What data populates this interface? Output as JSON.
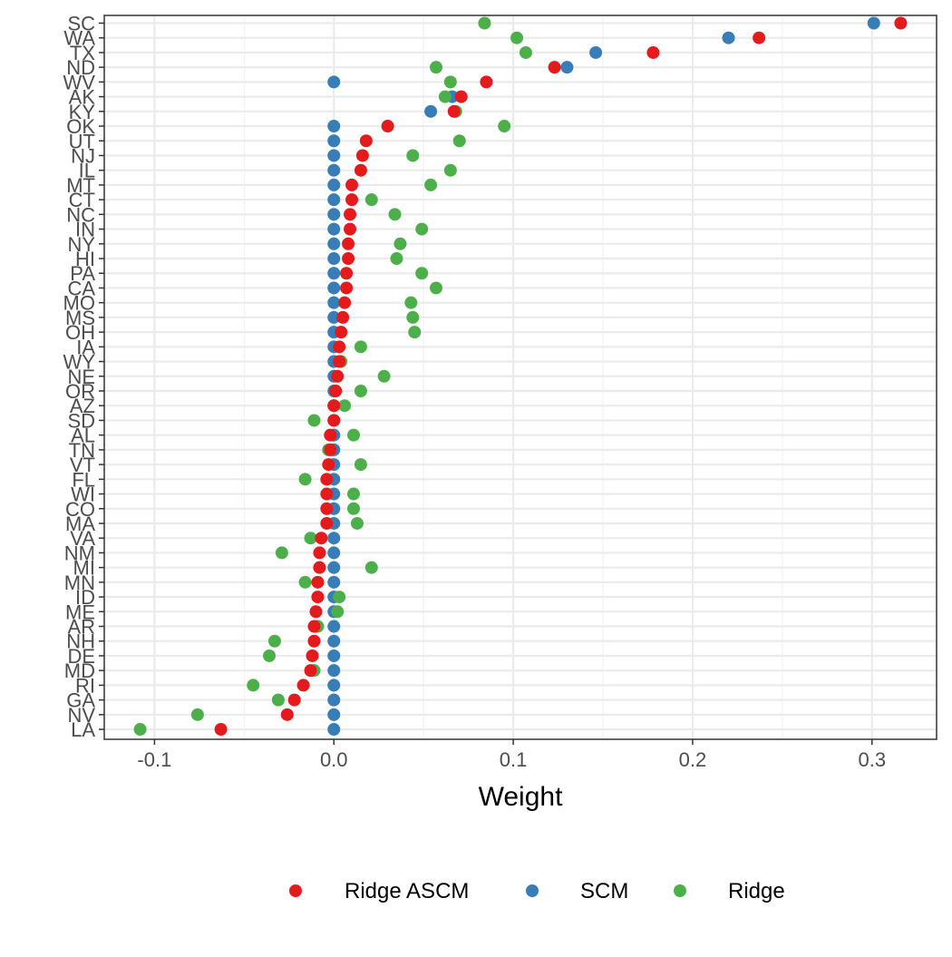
{
  "chart_data": {
    "type": "scatter",
    "title": "",
    "xlabel": "Weight",
    "ylabel": "",
    "xlim": [
      -0.128,
      0.336
    ],
    "x_ticks": [
      -0.1,
      0.0,
      0.1,
      0.2,
      0.3
    ],
    "x_tick_labels": [
      "-0.1",
      "0.0",
      "0.1",
      "0.2",
      "0.3"
    ],
    "grid": true,
    "legend_position": "bottom",
    "categories": [
      "SC",
      "WA",
      "TX",
      "ND",
      "WV",
      "AK",
      "KY",
      "OK",
      "UT",
      "NJ",
      "IL",
      "MT",
      "CT",
      "NC",
      "IN",
      "NY",
      "HI",
      "PA",
      "CA",
      "MO",
      "MS",
      "OH",
      "IA",
      "WY",
      "NE",
      "OR",
      "AZ",
      "SD",
      "AL",
      "TN",
      "VT",
      "FL",
      "WI",
      "CO",
      "MA",
      "VA",
      "NM",
      "MI",
      "MN",
      "ID",
      "ME",
      "AR",
      "NH",
      "DE",
      "MD",
      "RI",
      "GA",
      "NV",
      "LA"
    ],
    "series": [
      {
        "name": "SCM",
        "color": "#377EB8",
        "values": [
          0.301,
          0.22,
          0.146,
          0.13,
          0,
          0.066,
          0.054,
          0,
          0,
          0,
          0,
          0,
          0,
          0,
          0,
          0,
          0,
          0,
          0,
          0,
          0,
          0,
          0,
          0,
          0,
          0,
          0,
          0,
          0,
          0,
          0,
          0,
          0,
          0,
          0,
          0,
          0,
          0,
          0,
          0,
          0,
          0,
          0,
          0,
          0,
          0,
          0,
          0,
          0
        ]
      },
      {
        "name": "Ridge",
        "color": "#4DAF4A",
        "values": [
          0.084,
          0.102,
          0.107,
          0.057,
          0.065,
          0.062,
          0.068,
          0.095,
          0.07,
          0.044,
          0.065,
          0.054,
          0.021,
          0.034,
          0.049,
          0.037,
          0.035,
          0.049,
          0.057,
          0.043,
          0.044,
          0.045,
          0.015,
          0.004,
          0.028,
          0.015,
          0.006,
          -0.011,
          0.011,
          -0.003,
          0.015,
          -0.016,
          0.011,
          0.011,
          0.013,
          -0.013,
          -0.029,
          0.021,
          -0.016,
          0.003,
          0.002,
          -0.009,
          -0.033,
          -0.036,
          -0.011,
          -0.045,
          -0.031,
          -0.076,
          -0.108
        ]
      },
      {
        "name": "Ridge ASCM",
        "color": "#E41A1C",
        "values": [
          0.316,
          0.237,
          0.178,
          0.123,
          0.085,
          0.071,
          0.067,
          0.03,
          0.018,
          0.016,
          0.015,
          0.01,
          0.01,
          0.009,
          0.009,
          0.008,
          0.008,
          0.007,
          0.007,
          0.006,
          0.005,
          0.004,
          0.003,
          0.003,
          0.002,
          0.001,
          0.0,
          0.0,
          -0.002,
          -0.002,
          -0.003,
          -0.004,
          -0.004,
          -0.004,
          -0.004,
          -0.007,
          -0.008,
          -0.008,
          -0.009,
          -0.009,
          -0.01,
          -0.011,
          -0.011,
          -0.012,
          -0.013,
          -0.017,
          -0.022,
          -0.026,
          -0.063
        ]
      }
    ],
    "legend": [
      {
        "label": "Ridge ASCM",
        "color": "#E41A1C"
      },
      {
        "label": "SCM",
        "color": "#377EB8"
      },
      {
        "label": "Ridge",
        "color": "#4DAF4A"
      }
    ]
  }
}
